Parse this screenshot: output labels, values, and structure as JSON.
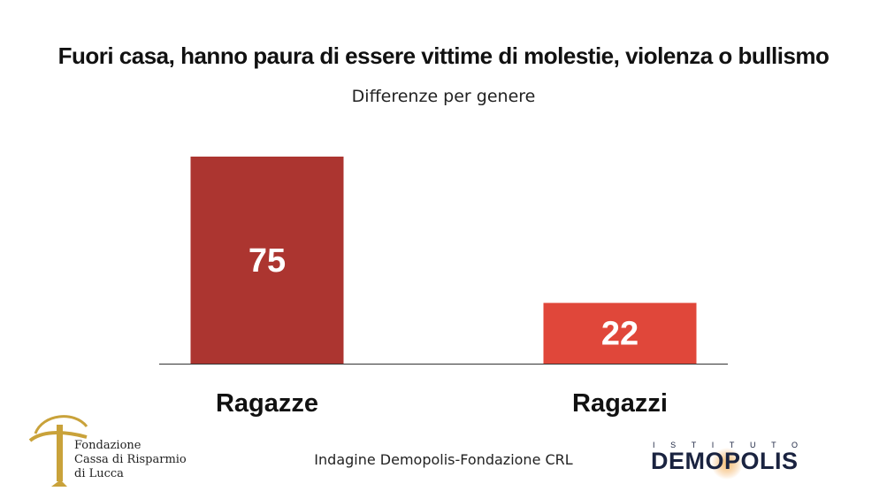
{
  "chart_data": {
    "type": "bar",
    "title": "Fuori casa, hanno paura di essere vittime di molestie, violenza o bullismo",
    "subtitle": "Differenze per genere",
    "categories": [
      "Ragazze",
      "Ragazzi"
    ],
    "values": [
      75,
      22
    ],
    "colors": [
      "#ac3530",
      "#e0473a"
    ],
    "xlabel": "",
    "ylabel": "",
    "ylim": [
      0,
      75
    ],
    "grid": false,
    "legend": "none"
  },
  "footer": {
    "source": "Indagine Demopolis-Fondazione CRL"
  },
  "logos": {
    "fondazione": {
      "line1": "Fondazione",
      "line2": "Cassa di Risparmio",
      "line3": "di Lucca",
      "color": "#c9a23a"
    },
    "demopolis": {
      "top": "ISTITUTO",
      "name": "DEMOPOLIS",
      "color": "#1a2340",
      "accent": "#f0a24a"
    }
  }
}
